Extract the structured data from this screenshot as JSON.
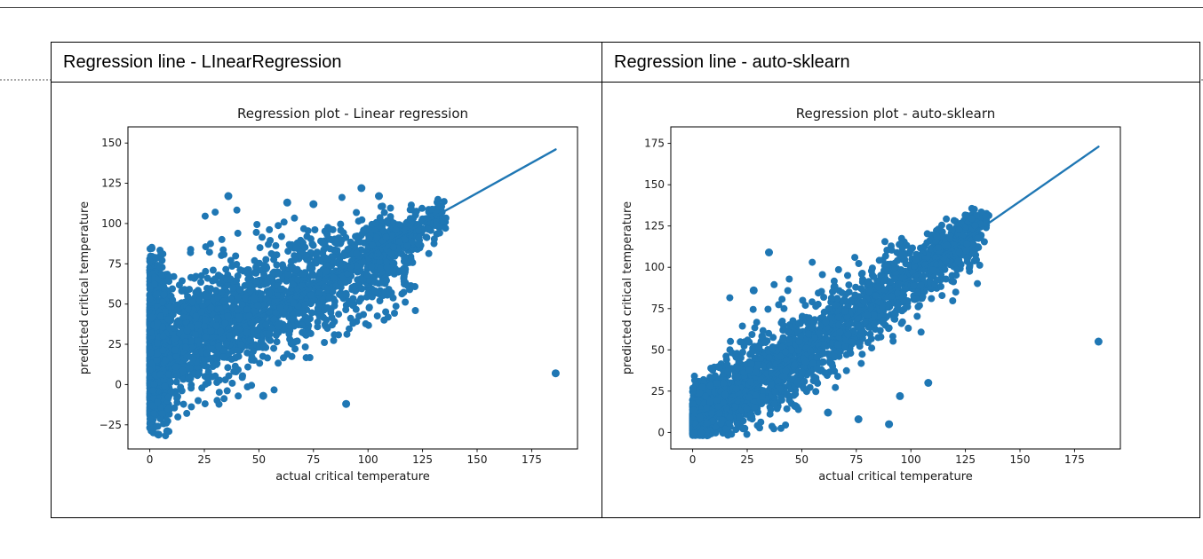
{
  "table": {
    "headers": [
      {
        "label": "Regression line - LInearRegression"
      },
      {
        "label": "Regression line - auto-sklearn"
      }
    ]
  },
  "chart_data": [
    {
      "type": "scatter",
      "name": "linear-regression",
      "title": "Regression plot - Linear regression",
      "xlabel": "actual critical temperature",
      "ylabel": "predicted critical temperature",
      "xlim": [
        -10,
        196
      ],
      "ylim": [
        -40,
        160
      ],
      "x_ticks": [
        0,
        25,
        50,
        75,
        100,
        125,
        150,
        175
      ],
      "y_ticks": [
        -25,
        0,
        25,
        50,
        75,
        100,
        125,
        150
      ],
      "grid": false,
      "legend": "none",
      "color": "#1f77b4",
      "seed": 42,
      "regression_line": {
        "x": [
          0,
          186
        ],
        "y": [
          6,
          146
        ]
      },
      "scatter_clusters": [
        {
          "n": 900,
          "x_range": [
            0,
            9
          ],
          "x_pow": 2.2,
          "intercept": 22,
          "slope": 0,
          "spread": 26,
          "y_clip": [
            -32,
            86
          ]
        },
        {
          "n": 1700,
          "x_range": [
            0,
            122
          ],
          "x_pow": 1.6,
          "intercept": 17,
          "slope": 0.56,
          "spread": 17,
          "y_clip": [
            -28,
            114
          ]
        },
        {
          "n": 450,
          "x_range": [
            15,
            112
          ],
          "x_pow": 1.1,
          "intercept": 28,
          "slope": 0.52,
          "spread": 13,
          "y_clip": [
            -8,
            106
          ]
        },
        {
          "n": 200,
          "x_range": [
            100,
            136
          ],
          "x_pow": 1.0,
          "intercept": 24,
          "slope": 0.6,
          "spread": 8,
          "y_clip": [
            62,
            116
          ]
        },
        {
          "n": 22,
          "x_range": [
            25,
            105
          ],
          "x_pow": 1.0,
          "intercept": 72,
          "slope": 0.38,
          "spread": 10,
          "y_clip": [
            82,
            124
          ]
        }
      ],
      "outlier_points": [
        [
          186,
          7
        ],
        [
          90,
          -12
        ],
        [
          52,
          -7
        ],
        [
          36,
          117
        ],
        [
          63,
          113
        ],
        [
          75,
          112
        ],
        [
          97,
          122
        ],
        [
          105,
          117
        ],
        [
          4,
          -31
        ],
        [
          8,
          -29
        ]
      ]
    },
    {
      "type": "scatter",
      "name": "auto-sklearn",
      "title": "Regression plot - auto-sklearn",
      "xlabel": "actual critical temperature",
      "ylabel": "predicted critical temperature",
      "xlim": [
        -10,
        196
      ],
      "ylim": [
        -10,
        185
      ],
      "x_ticks": [
        0,
        25,
        50,
        75,
        100,
        125,
        150,
        175
      ],
      "y_ticks": [
        0,
        25,
        50,
        75,
        100,
        125,
        150,
        175
      ],
      "grid": false,
      "legend": "none",
      "color": "#1f77b4",
      "seed": 7,
      "regression_line": {
        "x": [
          0,
          186
        ],
        "y": [
          2,
          173
        ]
      },
      "scatter_clusters": [
        {
          "n": 700,
          "x_range": [
            0,
            8
          ],
          "x_pow": 1.8,
          "intercept": 6,
          "slope": 0.6,
          "spread": 6,
          "y_clip": [
            -1,
            20
          ]
        },
        {
          "n": 1900,
          "x_range": [
            0,
            132
          ],
          "x_pow": 1.7,
          "intercept": 2,
          "slope": 0.88,
          "spread": 11,
          "y_clip": [
            -2,
            136
          ]
        },
        {
          "n": 260,
          "x_range": [
            8,
            100
          ],
          "x_pow": 1.2,
          "intercept": 16,
          "slope": 0.9,
          "spread": 10,
          "y_clip": [
            4,
            120
          ]
        },
        {
          "n": 180,
          "x_range": [
            100,
            136
          ],
          "x_pow": 1.0,
          "intercept": 10,
          "slope": 0.88,
          "spread": 7,
          "y_clip": [
            82,
            134
          ]
        },
        {
          "n": 18,
          "x_range": [
            15,
            60
          ],
          "x_pow": 1.0,
          "intercept": 42,
          "slope": 0.95,
          "spread": 9,
          "y_clip": [
            48,
            112
          ]
        }
      ],
      "outlier_points": [
        [
          186,
          55
        ],
        [
          35,
          109
        ],
        [
          28,
          86
        ],
        [
          90,
          5
        ],
        [
          76,
          8
        ],
        [
          62,
          12
        ],
        [
          47,
          16
        ],
        [
          108,
          30
        ],
        [
          95,
          22
        ]
      ]
    }
  ]
}
